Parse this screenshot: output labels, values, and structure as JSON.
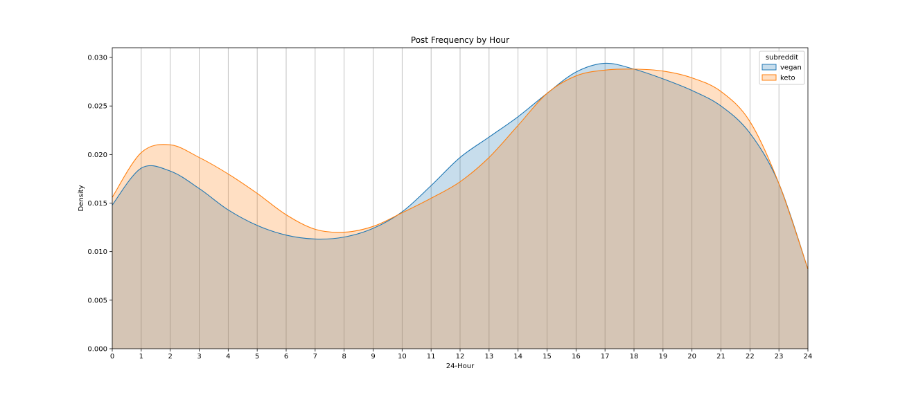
{
  "chart_data": {
    "type": "area",
    "title": "Post Frequency by Hour",
    "xlabel": "24-Hour",
    "ylabel": "Density",
    "xlim": [
      0,
      24
    ],
    "ylim": [
      0,
      0.031
    ],
    "x_ticks": [
      0,
      1,
      2,
      3,
      4,
      5,
      6,
      7,
      8,
      9,
      10,
      11,
      12,
      13,
      14,
      15,
      16,
      17,
      18,
      19,
      20,
      21,
      22,
      23,
      24
    ],
    "y_ticks": [
      0.0,
      0.005,
      0.01,
      0.015,
      0.02,
      0.025,
      0.03
    ],
    "y_tick_labels": [
      "0.000",
      "0.005",
      "0.010",
      "0.015",
      "0.020",
      "0.025",
      "0.030"
    ],
    "x_grid": true,
    "y_grid": false,
    "legend": {
      "title": "subreddit",
      "placement": "top-right"
    },
    "x": [
      0,
      1,
      2,
      3,
      4,
      5,
      6,
      7,
      8,
      9,
      10,
      11,
      12,
      13,
      14,
      15,
      16,
      17,
      18,
      19,
      20,
      21,
      22,
      23,
      24
    ],
    "series": [
      {
        "name": "vegan",
        "line_color": "#1f77b4",
        "fill_color": "#1f77b4",
        "values": [
          0.0148,
          0.0186,
          0.0183,
          0.0165,
          0.0143,
          0.0127,
          0.0117,
          0.0113,
          0.0115,
          0.0124,
          0.0141,
          0.0168,
          0.0197,
          0.0218,
          0.0239,
          0.0263,
          0.0285,
          0.0294,
          0.0288,
          0.0278,
          0.0266,
          0.025,
          0.0222,
          0.017,
          0.0082
        ]
      },
      {
        "name": "keto",
        "line_color": "#ff7f0e",
        "fill_color": "#ff7f0e",
        "values": [
          0.0156,
          0.0202,
          0.021,
          0.0197,
          0.018,
          0.016,
          0.0138,
          0.0123,
          0.012,
          0.0126,
          0.014,
          0.0155,
          0.0172,
          0.0197,
          0.023,
          0.0263,
          0.0281,
          0.0287,
          0.0288,
          0.0286,
          0.0279,
          0.0265,
          0.0234,
          0.017,
          0.0082
        ]
      }
    ]
  }
}
